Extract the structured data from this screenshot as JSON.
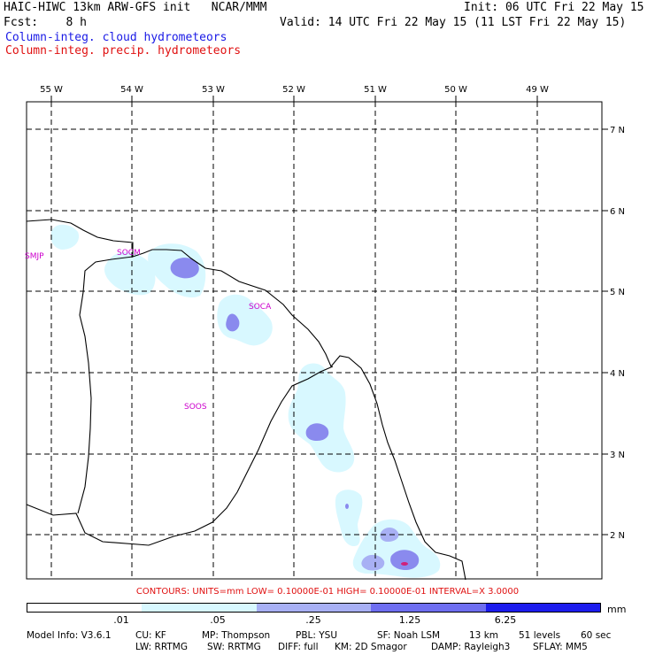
{
  "header": {
    "title_left": "HAIC-HIWC 13km ARW-GFS init   NCAR/MMM",
    "init": "Init: 06 UTC Fri 22 May 15",
    "fcst": "Fcst:    8 h",
    "valid": "Valid: 14 UTC Fri 22 May 15 (11 LST Fri 22 May 15)",
    "legend_cloud": "Column-integ. cloud hydrometeors",
    "legend_precip": "Column-integ. precip. hydrometeors"
  },
  "map": {
    "lon_labels": [
      "55 W",
      "54 W",
      "53 W",
      "52 W",
      "51 W",
      "50 W",
      "49 W"
    ],
    "lat_labels": [
      "7 N",
      "6 N",
      "5 N",
      "4 N",
      "3 N",
      "2 N"
    ],
    "stations": [
      "SMJP",
      "SOCM",
      "SOCA",
      "SOOS"
    ]
  },
  "contours_line": "CONTOURS:  UNITS=mm  LOW= 0.10000E-01  HIGH= 0.10000E-01  INTERVAL=X  3.0000",
  "colorbar": {
    "colors": [
      "#ffffff",
      "#d8f8ff",
      "#a8b0f4",
      "#6e6ef0",
      "#1c1cee"
    ],
    "labels": [
      ".01",
      ".05",
      ".25",
      "1.25",
      "6.25"
    ],
    "unit": "mm"
  },
  "model_info": {
    "line1": [
      "Model Info: V3.6.1",
      "CU: KF",
      "MP: Thompson",
      "PBL: YSU",
      "SF: Noah LSM",
      "13 km",
      "51 levels",
      "60 sec"
    ],
    "line2": [
      "LW: RRTMG",
      "SW: RRTMG",
      "DIFF: full",
      "KM: 2D Smagor",
      "DAMP: Rayleigh3",
      "SFLAY: MM5"
    ]
  }
}
